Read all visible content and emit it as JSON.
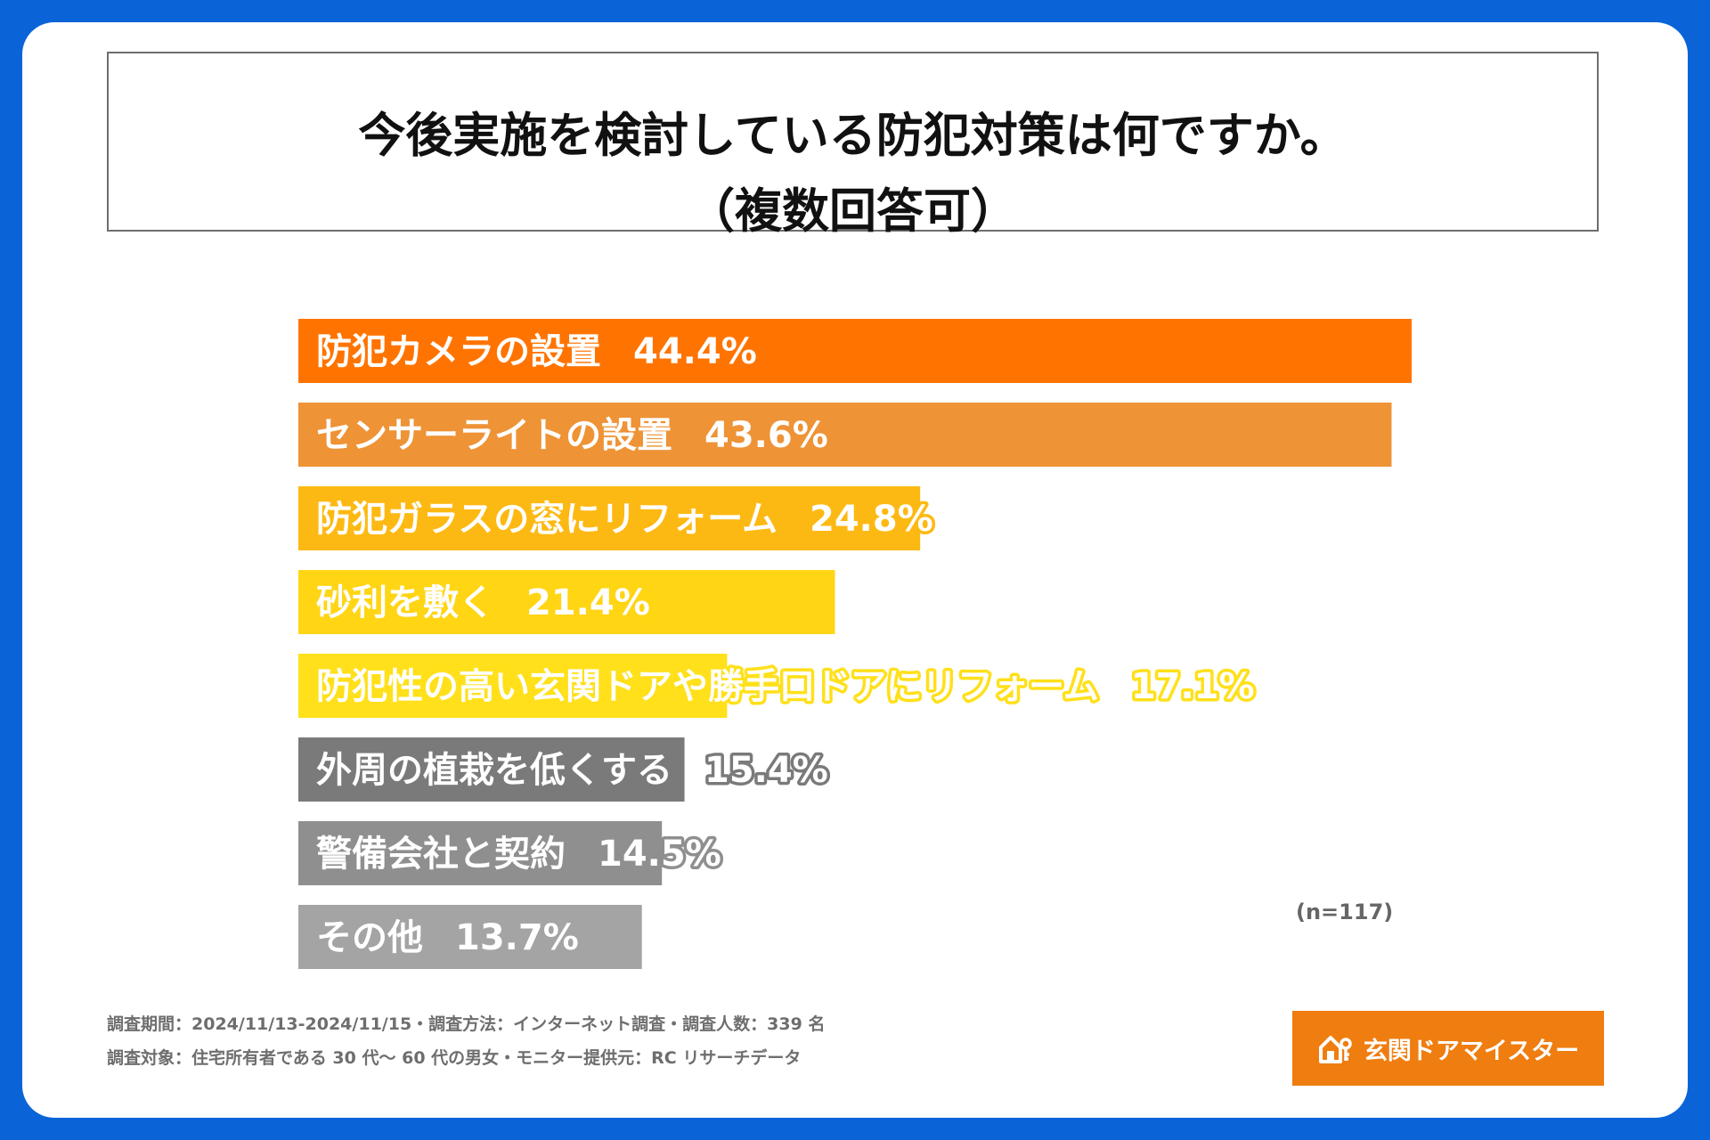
{
  "title": {
    "line1": "今後実施を検討している防犯対策は何ですか。",
    "line2": "（複数回答可）"
  },
  "chart_data": {
    "type": "bar",
    "orientation": "horizontal",
    "categories": [
      "防犯カメラの設置",
      "センサーライトの設置",
      "防犯ガラスの窓にリフォーム",
      "砂利を敷く",
      "防犯性の高い玄関ドアや勝手口ドアにリフォーム",
      "外周の植栽を低くする",
      "警備会社と契約",
      "その他"
    ],
    "values": [
      44.4,
      43.6,
      24.8,
      21.4,
      17.1,
      15.4,
      14.5,
      13.7
    ],
    "value_labels": [
      "44.4%",
      "43.6%",
      "24.8%",
      "21.4%",
      "17.1%",
      "15.4%",
      "14.5%",
      "13.7%"
    ],
    "colors": [
      "#ff7400",
      "#ee9336",
      "#fdb913",
      "#ffd514",
      "#ffe01a",
      "#7a7a7a",
      "#8f8f8f",
      "#a4a4a4"
    ],
    "label_outline_colors": [
      "#ff7400",
      "#ee9336",
      "#fdb913",
      "#ffd514",
      "#ffe01a",
      "#7a7a7a",
      "#8f8f8f",
      "#a4a4a4"
    ],
    "xlim": [
      0,
      44.4
    ],
    "grid": false,
    "legend": "none"
  },
  "sample_note": "(n=117)",
  "footer": {
    "line1": "調査期間：2024/11/13-2024/11/15・調査方法：インターネット調査・調査人数：339 名",
    "line2": "調査対象：住宅所有者である 30 代～ 60 代の男女・モニター提供元：RC リサーチデータ"
  },
  "logo": {
    "text": "玄関ドアマイスター",
    "icon": "house-key-icon"
  }
}
